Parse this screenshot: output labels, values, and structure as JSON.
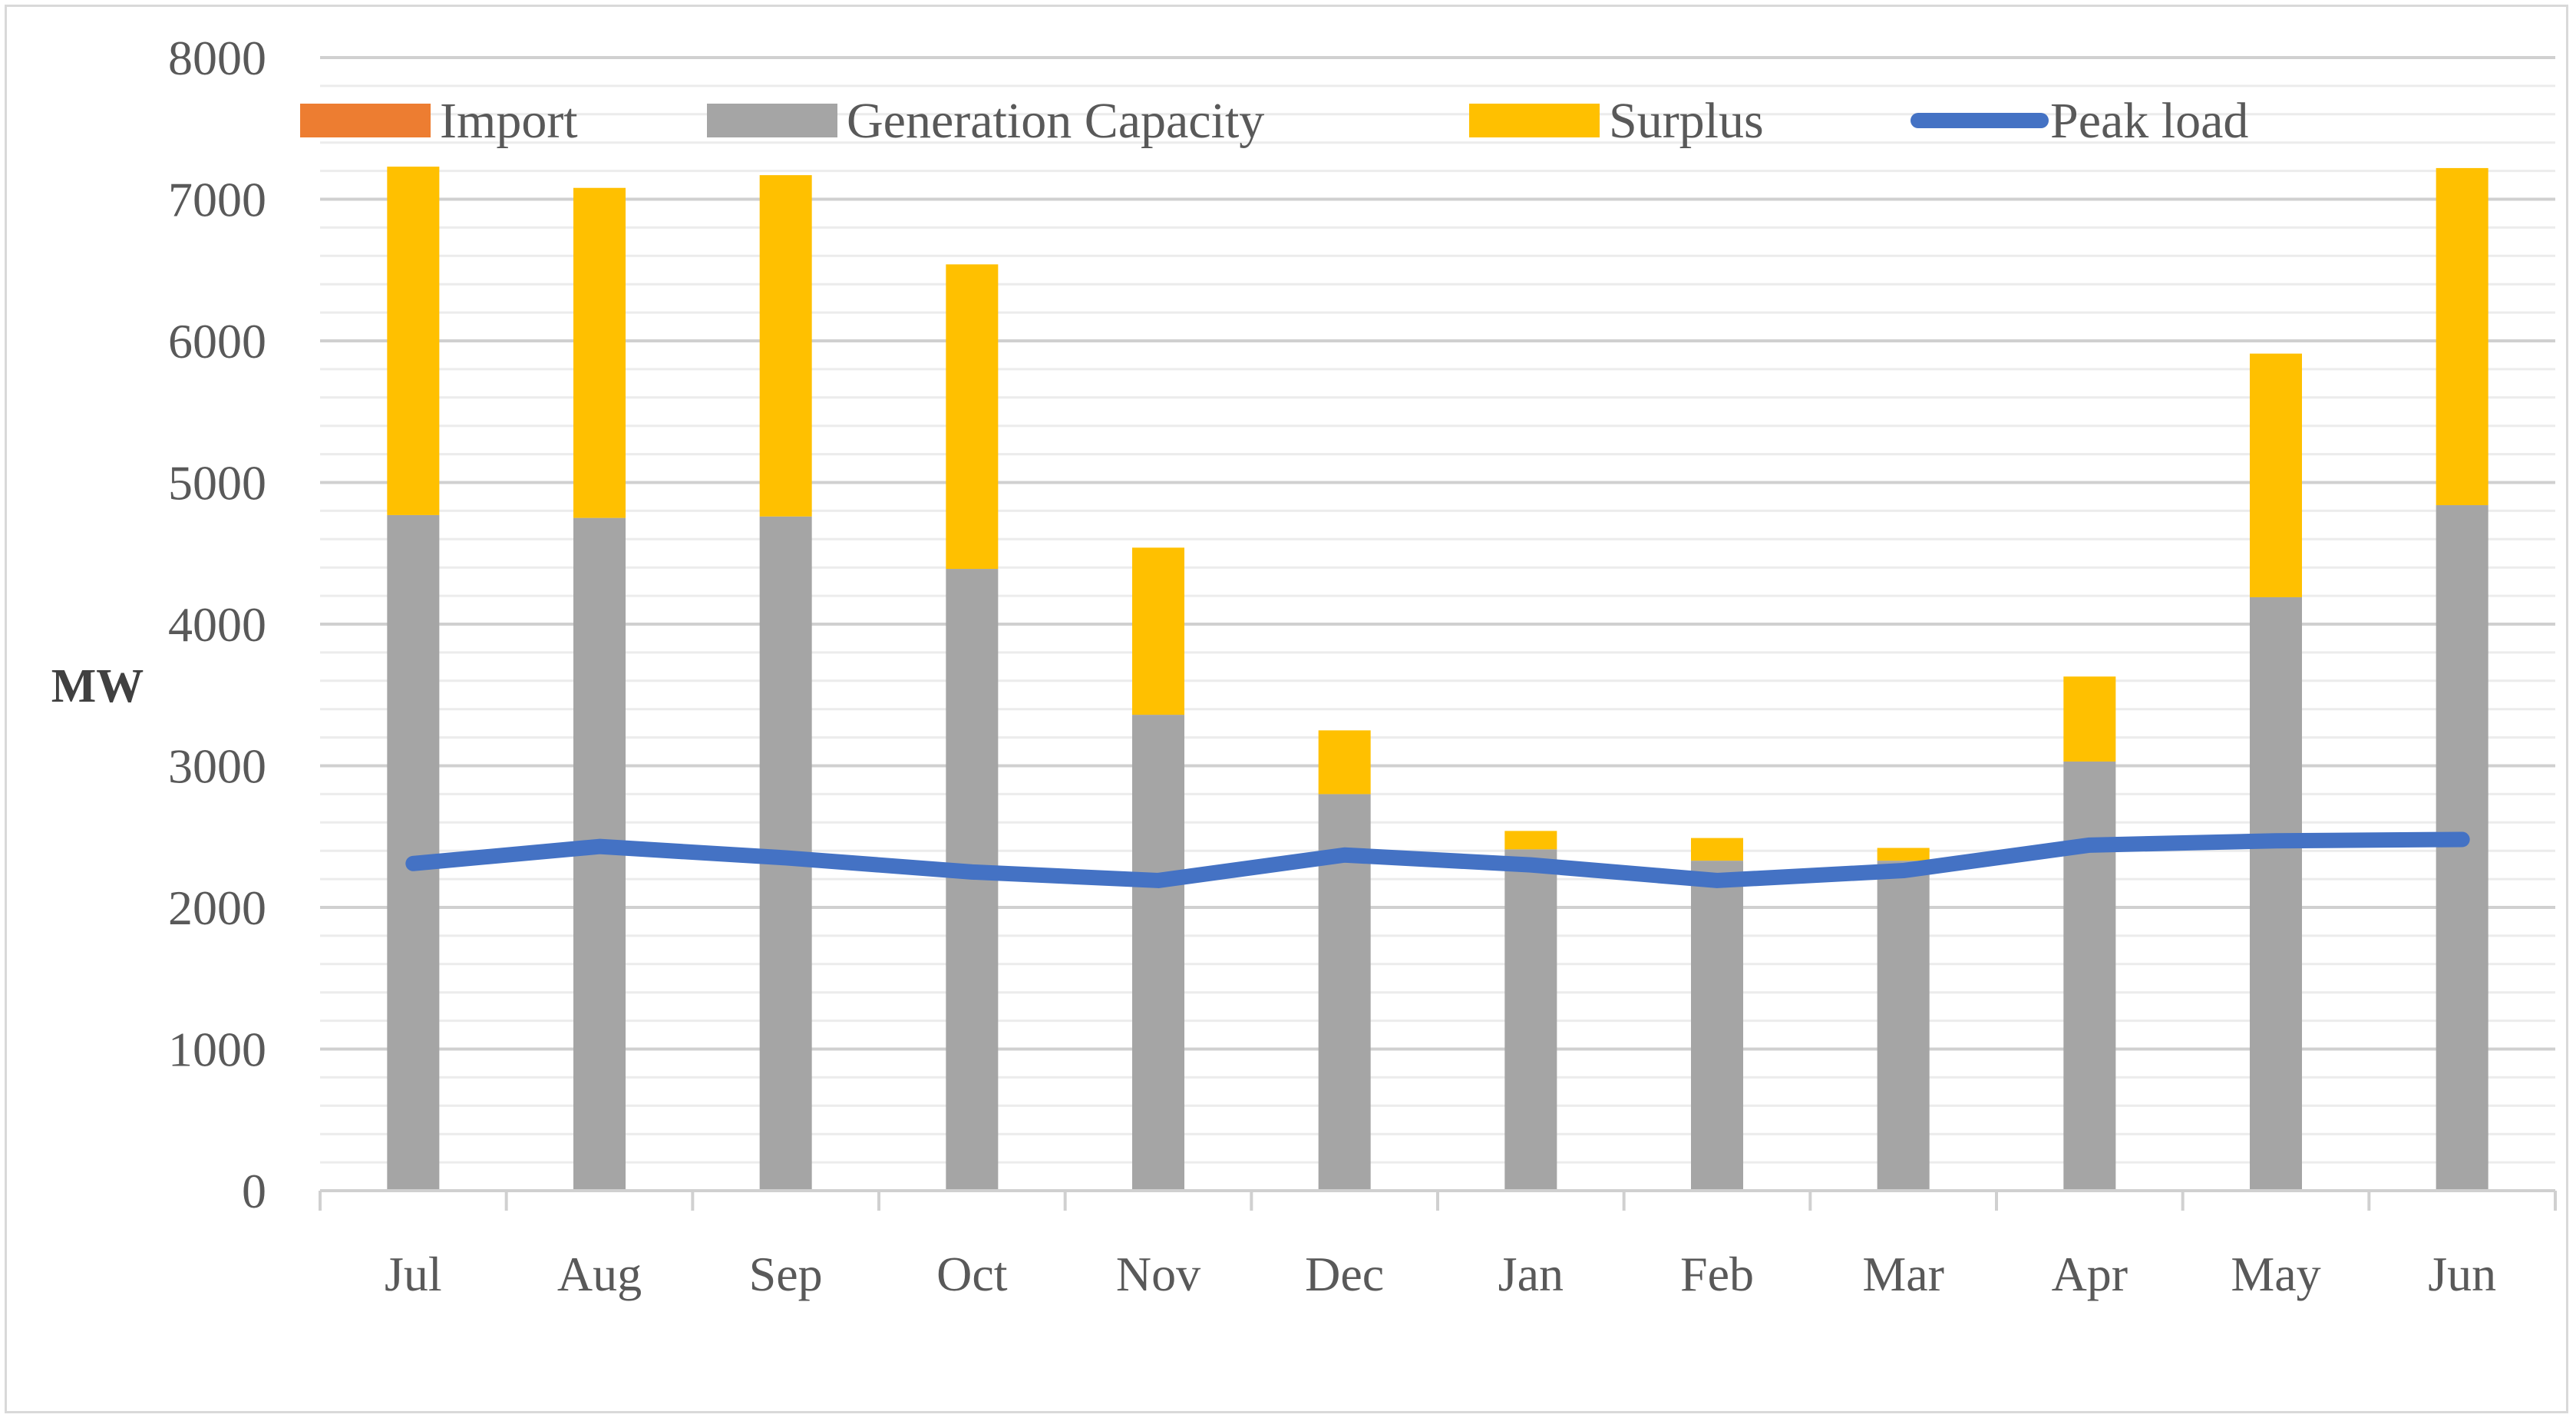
{
  "chart_data": {
    "type": "bar",
    "stacked": true,
    "categories": [
      "Jul",
      "Aug",
      "Sep",
      "Oct",
      "Nov",
      "Dec",
      "Jan",
      "Feb",
      "Mar",
      "Apr",
      "May",
      "Jun"
    ],
    "series": [
      {
        "name": "Import",
        "kind": "bar",
        "color": "#ED7D31",
        "values": [
          0,
          0,
          0,
          0,
          0,
          0,
          0,
          0,
          0,
          0,
          0,
          0
        ]
      },
      {
        "name": "Generation Capacity",
        "kind": "bar",
        "color": "#A5A5A5",
        "values": [
          4770,
          4750,
          4760,
          4390,
          3360,
          2800,
          2410,
          2330,
          2330,
          3030,
          4190,
          4840
        ]
      },
      {
        "name": "Surplus",
        "kind": "bar",
        "color": "#FFC000",
        "values": [
          2460,
          2330,
          2410,
          2150,
          1180,
          450,
          130,
          160,
          90,
          600,
          1720,
          2380
        ]
      },
      {
        "name": "Peak load",
        "kind": "line",
        "color": "#4472C4",
        "values": [
          2310,
          2430,
          2350,
          2250,
          2190,
          2370,
          2300,
          2190,
          2260,
          2440,
          2470,
          2480
        ]
      }
    ],
    "ylabel": "MW",
    "xlabel": "",
    "ylim": [
      0,
      8000
    ],
    "yticks": [
      "0",
      "1000",
      "2000",
      "3000",
      "4000",
      "5000",
      "6000",
      "7000",
      "8000"
    ],
    "grid": true,
    "legend_position": "top"
  }
}
